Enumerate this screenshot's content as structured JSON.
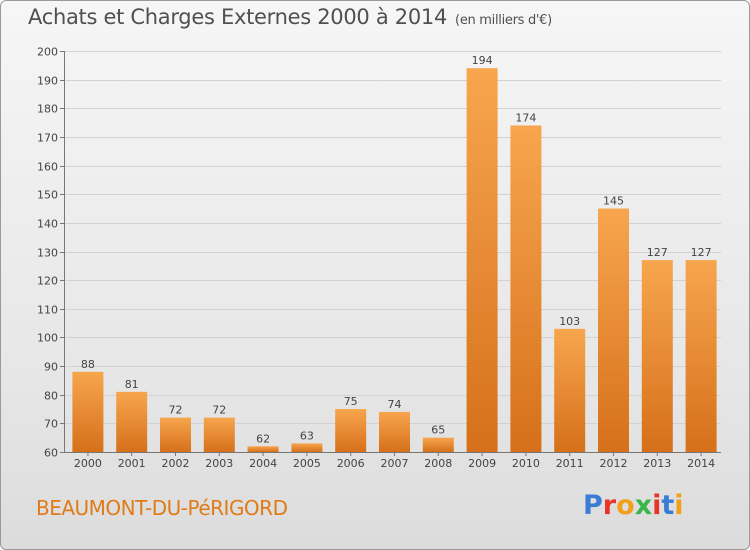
{
  "header": {
    "title": "Achats et Charges Externes 2000 à 2014",
    "unit": "(en milliers d'€)"
  },
  "footer": {
    "commune": "BEAUMONT-DU-PéRIGORD",
    "logo_text": "Proxiti"
  },
  "colors": {
    "bar_light": "#f6a34c",
    "bar_dark": "#d8711a",
    "commune": "#e07b1a",
    "logo": [
      "#3a7bd5",
      "#e8342a",
      "#f2a01a",
      "#3ab54a",
      "#e8342a",
      "#3a7bd5",
      "#f2a01a"
    ]
  },
  "chart_data": {
    "type": "bar",
    "title": "Achats et Charges Externes 2000 à 2014",
    "subtitle": "(en milliers d'€)",
    "categories": [
      "2000",
      "2001",
      "2002",
      "2003",
      "2004",
      "2005",
      "2006",
      "2007",
      "2008",
      "2009",
      "2010",
      "2011",
      "2012",
      "2013",
      "2014"
    ],
    "values": [
      88,
      81,
      72,
      72,
      62,
      63,
      75,
      74,
      65,
      194,
      174,
      103,
      145,
      127,
      127
    ],
    "ylim": [
      60,
      200
    ],
    "yticks": [
      60,
      70,
      80,
      90,
      100,
      110,
      120,
      130,
      140,
      150,
      160,
      170,
      180,
      190,
      200
    ],
    "grid": true,
    "xlabel": "",
    "ylabel": ""
  }
}
